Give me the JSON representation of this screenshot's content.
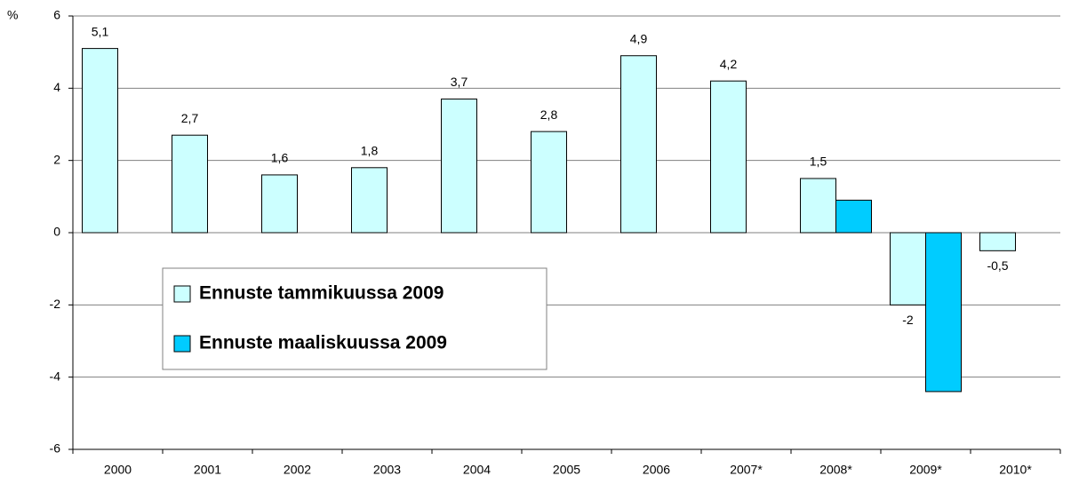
{
  "chart_data": {
    "type": "bar",
    "y_label": "%",
    "categories": [
      "2000",
      "2001",
      "2002",
      "2003",
      "2004",
      "2005",
      "2006",
      "2007*",
      "2008*",
      "2009*",
      "2010*"
    ],
    "series": [
      {
        "name": "Ennuste tammikuussa 2009",
        "color": "#ccffff",
        "values": [
          5.1,
          2.7,
          1.6,
          1.8,
          3.7,
          2.8,
          4.9,
          4.2,
          1.5,
          -2,
          -0.5
        ],
        "value_labels": [
          "5,1",
          "2,7",
          "1,6",
          "1,8",
          "3,7",
          "2,8",
          "4,9",
          "4,2",
          "1,5",
          "-2",
          "-0,5"
        ]
      },
      {
        "name": "Ennuste maaliskuussa 2009",
        "color": "#00ccff",
        "values": [
          null,
          null,
          null,
          null,
          null,
          null,
          null,
          null,
          0.9,
          -4.4,
          null
        ]
      }
    ],
    "ylim": [
      -6,
      6
    ],
    "yticks": [
      -6,
      -4,
      -2,
      0,
      2,
      4,
      6
    ],
    "grid": true
  }
}
